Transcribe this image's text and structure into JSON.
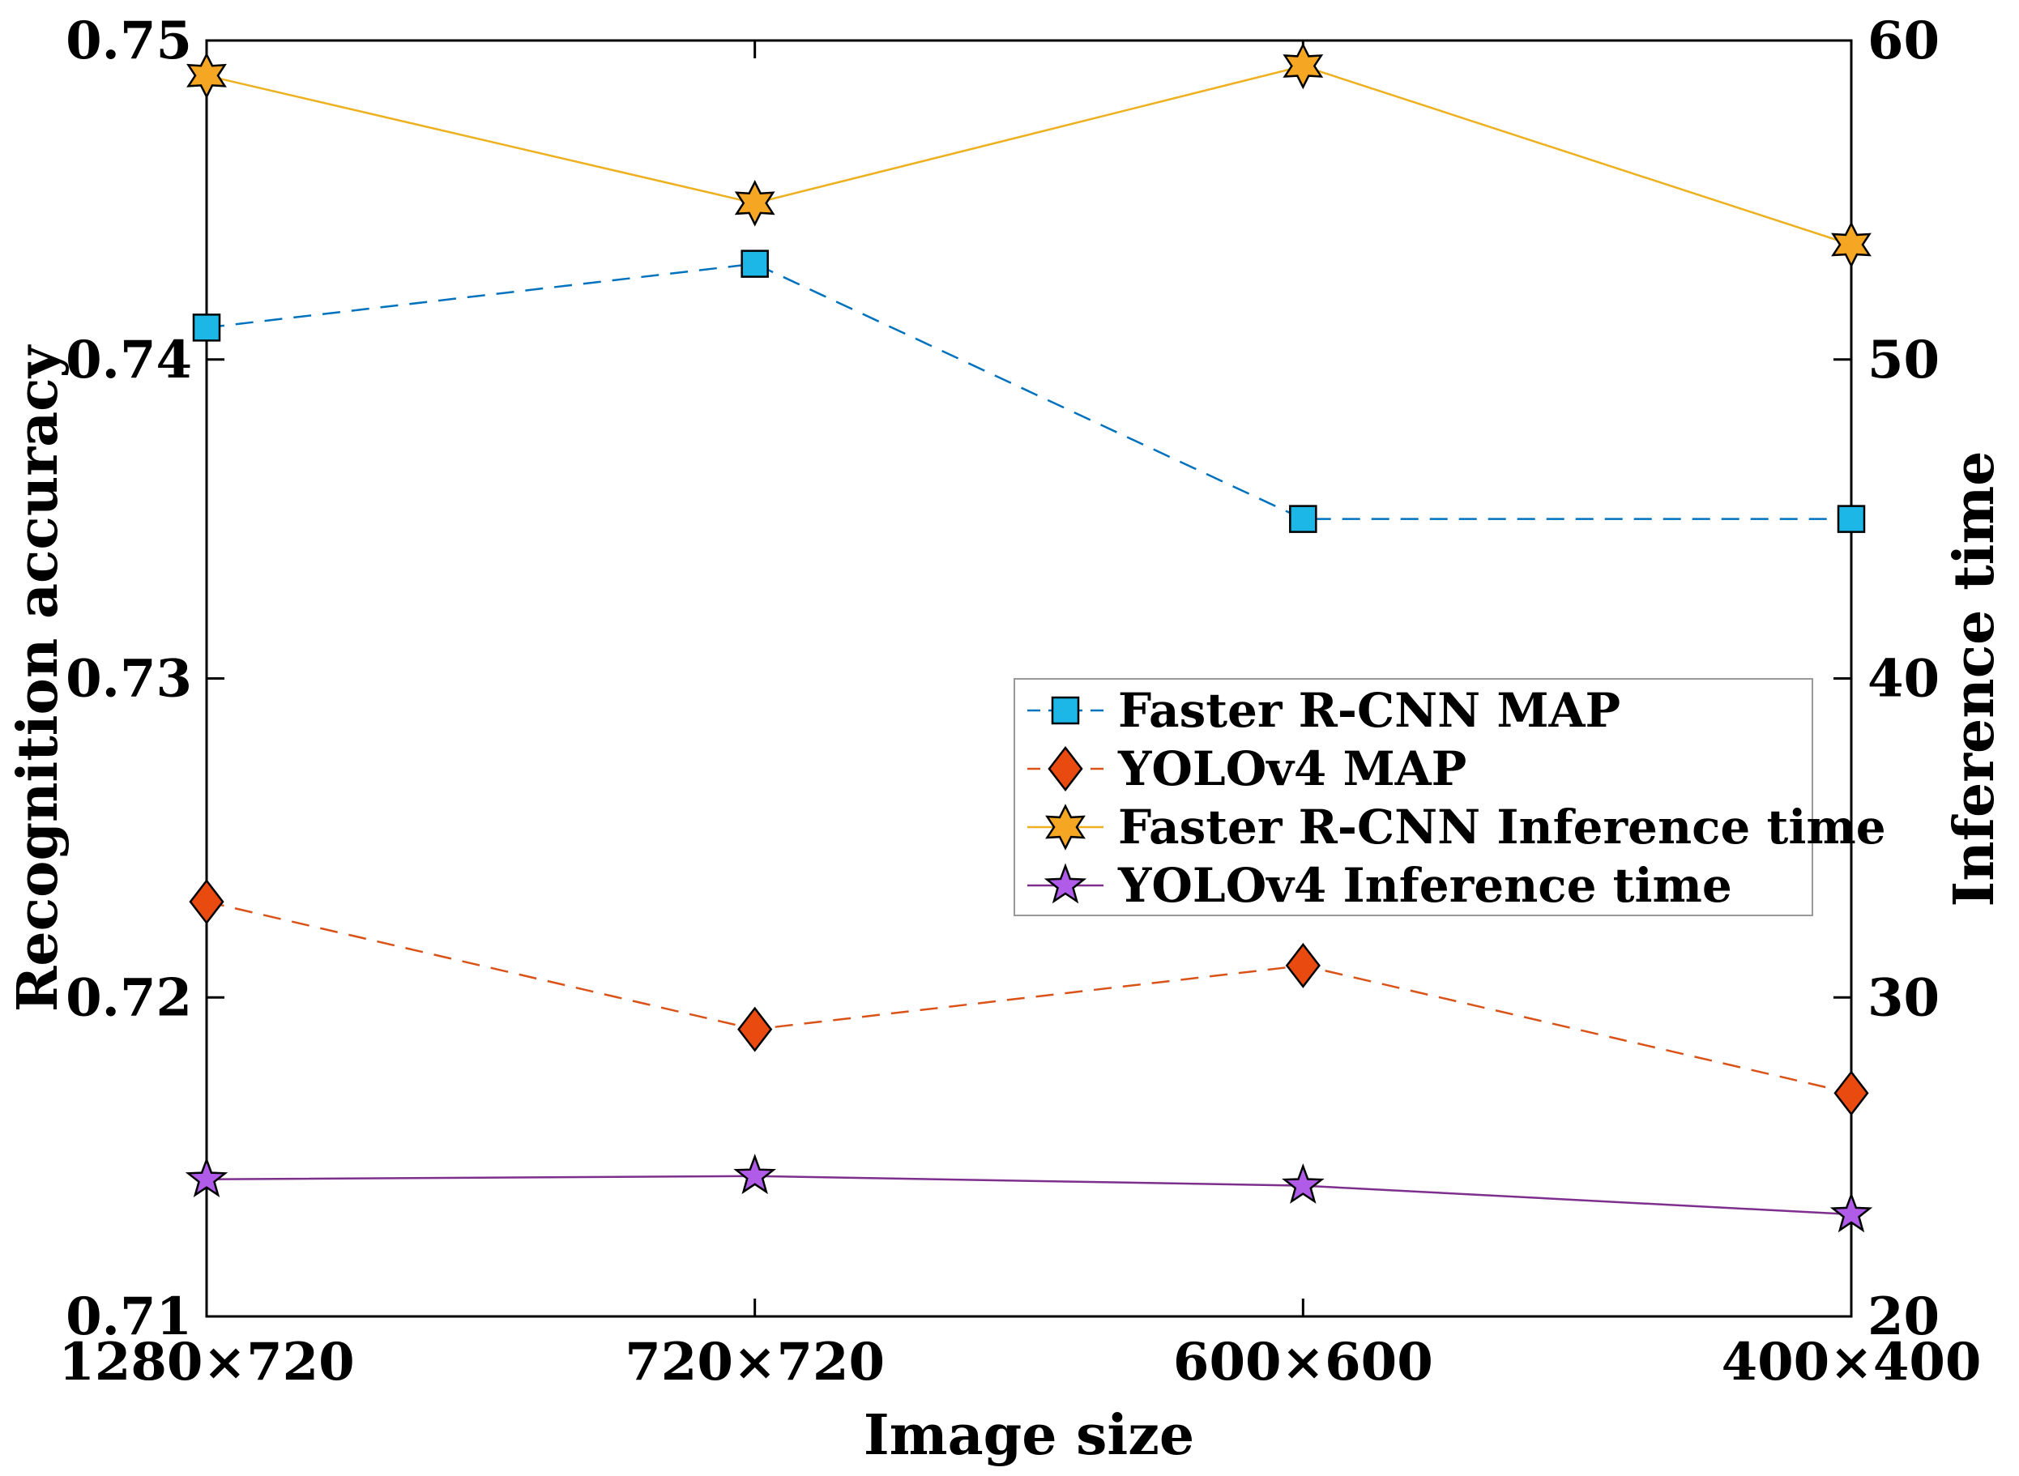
{
  "chart_data": {
    "type": "line",
    "categories": [
      "1280×720",
      "720×720",
      "600×600",
      "400×400"
    ],
    "xlabel": "Image size",
    "ylabel_left": "Recognition accuracy",
    "ylabel_right": "Inference time",
    "ylim_left": [
      0.71,
      0.75
    ],
    "ylim_right": [
      20,
      60
    ],
    "yticks_left": [
      "0.71",
      "0.72",
      "0.73",
      "0.74",
      "0.75"
    ],
    "yticks_right": [
      "20",
      "30",
      "40",
      "50",
      "60"
    ],
    "grid": false,
    "legend_position": "center-right",
    "series": [
      {
        "name": "Faster R-CNN MAP",
        "axis": "left",
        "values": [
          0.741,
          0.743,
          0.735,
          0.735
        ],
        "color": "#0072BD",
        "marker": "square",
        "marker_fill": "#1CB7E6",
        "line_style": "dashed"
      },
      {
        "name": "YOLOv4 MAP",
        "axis": "left",
        "values": [
          0.723,
          0.719,
          0.721,
          0.717
        ],
        "color": "#D95319",
        "marker": "diamond",
        "marker_fill": "#E84A10",
        "line_style": "dashed"
      },
      {
        "name": "Faster R-CNN Inference time",
        "axis": "right",
        "values": [
          58.9,
          54.9,
          59.2,
          53.6
        ],
        "color": "#EDB120",
        "marker": "hexagram",
        "marker_fill": "#F5A623",
        "line_style": "solid"
      },
      {
        "name": "YOLOv4 Inference time",
        "axis": "right",
        "values": [
          24.3,
          24.4,
          24.1,
          23.2
        ],
        "color": "#7E2F8E",
        "marker": "pentagram",
        "marker_fill": "#B05CE8",
        "line_style": "solid"
      }
    ]
  }
}
